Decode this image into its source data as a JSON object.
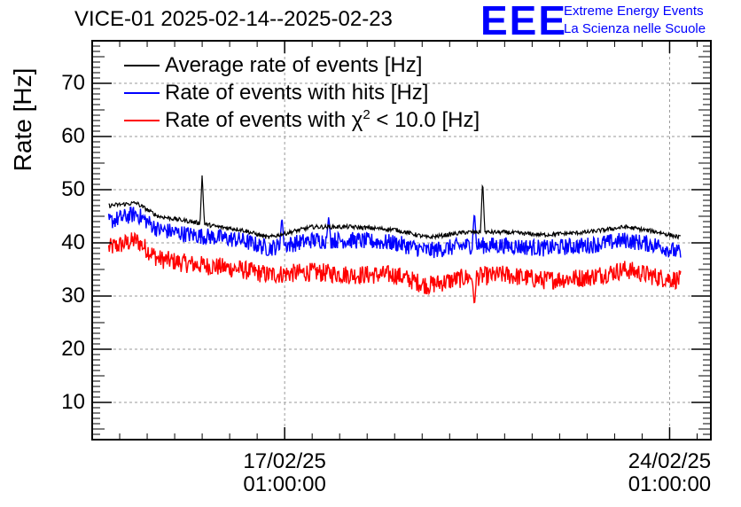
{
  "chart_data": {
    "type": "line",
    "title": "VICE-01 2025-02-14--2025-02-23",
    "ylabel": "Rate [Hz]",
    "xlabel": "",
    "ylim": [
      3,
      78
    ],
    "grid": true,
    "legend_position": "top-left",
    "x_range_days": [
      -3.5,
      7.75
    ],
    "x_ticks": [
      {
        "day": 0,
        "date": "17/02/25",
        "time": "01:00:00"
      },
      {
        "day": 7,
        "date": "24/02/25",
        "time": "01:00:00"
      }
    ],
    "y_ticks": [
      10,
      20,
      30,
      40,
      50,
      60,
      70
    ],
    "series": [
      {
        "name": "Average rate of events [Hz]",
        "color": "#000000",
        "x_days": [
          -3.2,
          -2.7,
          -2.3,
          -1.7,
          -1.2,
          -0.8,
          -0.3,
          0.5,
          1.2,
          2.0,
          2.6,
          3.3,
          4.0,
          4.7,
          5.5,
          6.2,
          6.8,
          7.2
        ],
        "values": [
          47,
          47.5,
          45,
          44,
          43,
          42.5,
          41,
          43,
          43,
          42.5,
          41,
          42,
          42,
          41.5,
          42,
          43,
          42,
          41
        ],
        "spikes": [
          {
            "x_day": -1.5,
            "value": 53
          },
          {
            "x_day": 3.6,
            "value": 52
          }
        ]
      },
      {
        "name": "Rate of events with hits [Hz]",
        "color": "#0000ff",
        "x_days": [
          -3.2,
          -2.7,
          -2.3,
          -1.7,
          -1.2,
          -0.8,
          -0.3,
          0.5,
          1.2,
          2.0,
          2.6,
          3.3,
          4.0,
          4.7,
          5.5,
          6.2,
          6.8,
          7.2
        ],
        "values": [
          44,
          45.5,
          42.5,
          41.5,
          41,
          40.5,
          39,
          40.5,
          40.5,
          40,
          38.5,
          39.5,
          39.5,
          39,
          39.5,
          40.5,
          39.5,
          38
        ],
        "spikes": [
          {
            "x_day": -0.05,
            "value": 45
          },
          {
            "x_day": 0.8,
            "value": 45
          },
          {
            "x_day": 3.45,
            "value": 46
          }
        ]
      },
      {
        "name": "Rate of events with χ2 < 10.0 [Hz]",
        "color": "#ff0000",
        "x_days": [
          -3.2,
          -2.7,
          -2.3,
          -1.7,
          -1.2,
          -0.8,
          -0.3,
          0.5,
          1.2,
          2.0,
          2.6,
          3.3,
          4.0,
          4.7,
          5.5,
          6.2,
          6.8,
          7.2
        ],
        "values": [
          39,
          40.5,
          37,
          36,
          35.5,
          35,
          34,
          34.5,
          34,
          34,
          32,
          33.5,
          34,
          33,
          33.5,
          35,
          33.5,
          33
        ],
        "spikes": [
          {
            "x_day": 3.45,
            "value": 28
          }
        ]
      }
    ]
  },
  "legend": {
    "avg_label": "Average rate of events [Hz]",
    "hits_label": "Rate of events with hits [Hz]",
    "chi_prefix": "Rate of events with χ",
    "chi_sup": "2",
    "chi_suffix": " < 10.0 [Hz]"
  },
  "logo": {
    "mark": "EEE",
    "line1": "Extreme Energy Events",
    "line2": "La Scienza nelle Scuole"
  }
}
